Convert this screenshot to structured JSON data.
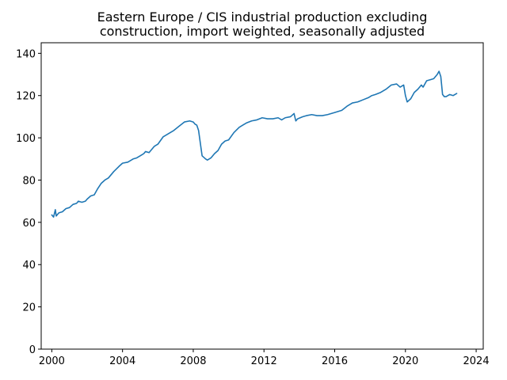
{
  "chart_data": {
    "type": "line",
    "title_lines": [
      "Eastern Europe / CIS industrial production excluding",
      "construction, import weighted, seasonally adjusted"
    ],
    "xlabel": "",
    "ylabel": "",
    "xlim": [
      1999.4,
      2024.4
    ],
    "ylim": [
      0,
      145
    ],
    "x_ticks": [
      2000,
      2004,
      2008,
      2012,
      2016,
      2020,
      2024
    ],
    "x_tick_labels": [
      "2000",
      "2004",
      "2008",
      "2012",
      "2016",
      "2020",
      "2024"
    ],
    "y_ticks": [
      0,
      20,
      40,
      60,
      80,
      100,
      120,
      140
    ],
    "y_tick_labels": [
      "0",
      "20",
      "40",
      "60",
      "80",
      "100",
      "120",
      "140"
    ],
    "grid": false,
    "series": [
      {
        "color": "#1f77b4",
        "x": [
          2000.0,
          2000.1,
          2000.2,
          2000.25,
          2000.3,
          2000.4,
          2000.6,
          2000.8,
          2001.0,
          2001.2,
          2001.4,
          2001.5,
          2001.7,
          2001.9,
          2002.0,
          2002.2,
          2002.4,
          2002.6,
          2002.8,
          2003.0,
          2003.2,
          2003.5,
          2003.8,
          2004.0,
          2004.3,
          2004.6,
          2004.8,
          2005.0,
          2005.2,
          2005.3,
          2005.5,
          2005.8,
          2006.0,
          2006.3,
          2006.6,
          2006.9,
          2007.2,
          2007.5,
          2007.8,
          2008.0,
          2008.1,
          2008.2,
          2008.3,
          2008.5,
          2008.7,
          2008.8,
          2008.9,
          2009.0,
          2009.2,
          2009.4,
          2009.6,
          2009.8,
          2010.0,
          2010.3,
          2010.6,
          2010.8,
          2011.0,
          2011.3,
          2011.6,
          2011.9,
          2012.2,
          2012.5,
          2012.8,
          2013.0,
          2013.2,
          2013.5,
          2013.7,
          2013.8,
          2013.9,
          2014.2,
          2014.4,
          2014.7,
          2015.0,
          2015.3,
          2015.6,
          2016.0,
          2016.4,
          2016.7,
          2017.0,
          2017.3,
          2017.6,
          2017.9,
          2018.1,
          2018.3,
          2018.6,
          2018.9,
          2019.2,
          2019.5,
          2019.7,
          2019.9,
          2020.0,
          2020.1,
          2020.3,
          2020.5,
          2020.7,
          2020.9,
          2021.0,
          2021.2,
          2021.4,
          2021.6,
          2021.8,
          2021.9,
          2022.0,
          2022.1,
          2022.2,
          2022.3,
          2022.5,
          2022.7,
          2022.9
        ],
        "y": [
          63.5,
          62.5,
          66.0,
          63.0,
          63.5,
          64.5,
          65.0,
          66.5,
          67.0,
          68.5,
          69.0,
          70.0,
          69.5,
          70.0,
          71.0,
          72.5,
          73.0,
          76.0,
          78.5,
          80.0,
          81.0,
          84.0,
          86.5,
          88.0,
          88.5,
          90.0,
          90.5,
          91.5,
          92.5,
          93.5,
          93.0,
          96.0,
          97.0,
          100.5,
          102.0,
          103.5,
          105.5,
          107.5,
          108.0,
          107.5,
          106.5,
          106.0,
          103.5,
          91.5,
          90.0,
          89.5,
          90.0,
          90.5,
          92.5,
          94.0,
          97.0,
          98.5,
          99.0,
          102.5,
          105.0,
          106.0,
          107.0,
          108.0,
          108.5,
          109.5,
          109.0,
          109.0,
          109.5,
          108.5,
          109.5,
          110.0,
          111.5,
          108.0,
          109.0,
          110.0,
          110.5,
          111.0,
          110.5,
          110.5,
          111.0,
          112.0,
          113.0,
          115.0,
          116.5,
          117.0,
          118.0,
          119.0,
          120.0,
          120.5,
          121.5,
          123.0,
          125.0,
          125.5,
          124.0,
          125.0,
          120.0,
          117.0,
          118.5,
          121.5,
          123.0,
          125.0,
          124.0,
          127.0,
          127.5,
          128.0,
          130.0,
          131.5,
          129.0,
          120.5,
          119.5,
          119.5,
          120.5,
          120.0,
          121.0
        ]
      }
    ]
  }
}
